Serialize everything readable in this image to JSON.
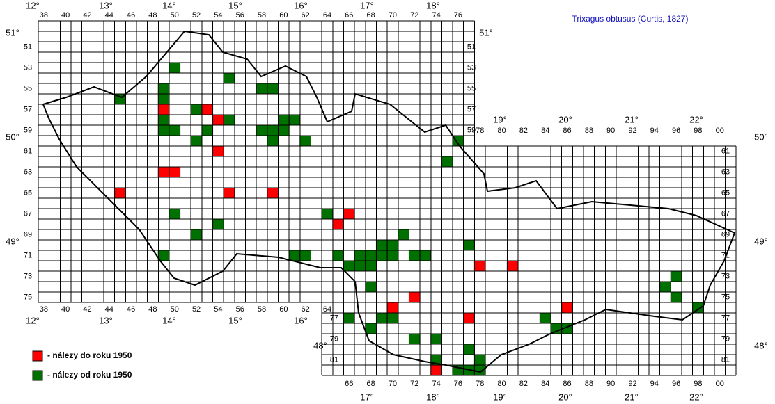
{
  "title": "Trixagus obtusus (Curtis, 1827)",
  "columns": {
    "west_top": [
      "38",
      "40",
      "42",
      "44",
      "46",
      "48",
      "50",
      "52",
      "54",
      "56",
      "58",
      "60",
      "62",
      "64",
      "66",
      "68",
      "70",
      "72",
      "74",
      "76"
    ],
    "east_top": [
      "78",
      "80",
      "82",
      "84",
      "86",
      "88",
      "90",
      "92",
      "94",
      "96",
      "98",
      "00"
    ],
    "west_bottom": [
      "38",
      "40",
      "42",
      "44",
      "46",
      "48",
      "50",
      "52",
      "54",
      "56",
      "58",
      "60",
      "62",
      "64"
    ],
    "east_bottom": [
      "66",
      "68",
      "70",
      "72",
      "74",
      "76",
      "78",
      "80",
      "82",
      "84",
      "86",
      "88",
      "90",
      "92",
      "94",
      "96",
      "98",
      "00"
    ]
  },
  "rows": {
    "west_left": [
      "51",
      "53",
      "55",
      "57",
      "59",
      "61",
      "63",
      "65",
      "67",
      "69",
      "71",
      "73",
      "75"
    ],
    "west_right": [
      "51",
      "53",
      "55",
      "57",
      "59"
    ],
    "east_right": [
      "61",
      "63",
      "65",
      "67",
      "69",
      "71",
      "73",
      "75",
      "77",
      "79",
      "81"
    ],
    "east_left": [
      "77",
      "79",
      "81"
    ]
  },
  "degrees": {
    "top": [
      "12°",
      "13°",
      "14°",
      "15°",
      "16°",
      "17°",
      "18°"
    ],
    "east_top": [
      "19°",
      "20°",
      "21°",
      "22°"
    ],
    "bottom_west": [
      "12°",
      "13°",
      "14°",
      "15°",
      "16°"
    ],
    "bottom_east": [
      "17°",
      "18°",
      "19°",
      "20°",
      "21°",
      "22°"
    ],
    "left": [
      "51°",
      "50°",
      "49°"
    ],
    "right": [
      "51°",
      "50°",
      "49°",
      "48°"
    ],
    "inner_left": [
      "48°"
    ]
  },
  "records": [
    {
      "label": "- nálezy do roku 1950",
      "color": "#ff0000",
      "cells": [
        [
          49,
          57
        ],
        [
          53,
          57
        ],
        [
          54,
          58
        ],
        [
          54,
          61
        ],
        [
          49,
          63
        ],
        [
          50,
          63
        ],
        [
          45,
          65
        ],
        [
          55,
          65
        ],
        [
          59,
          65
        ],
        [
          66,
          67
        ],
        [
          65,
          68
        ],
        [
          78,
          72
        ],
        [
          81,
          72
        ],
        [
          72,
          75
        ],
        [
          70,
          76
        ],
        [
          86,
          76
        ],
        [
          77,
          77
        ],
        [
          74,
          82
        ]
      ]
    },
    {
      "label": "- nálezy od roku 1950",
      "color": "#007000",
      "cells": [
        [
          50,
          53
        ],
        [
          55,
          54
        ],
        [
          49,
          55
        ],
        [
          58,
          55
        ],
        [
          59,
          55
        ],
        [
          45,
          56
        ],
        [
          49,
          56
        ],
        [
          52,
          57
        ],
        [
          49,
          58
        ],
        [
          55,
          58
        ],
        [
          60,
          58
        ],
        [
          61,
          58
        ],
        [
          49,
          59
        ],
        [
          50,
          59
        ],
        [
          53,
          59
        ],
        [
          58,
          59
        ],
        [
          59,
          59
        ],
        [
          60,
          59
        ],
        [
          52,
          60
        ],
        [
          59,
          60
        ],
        [
          62,
          60
        ],
        [
          76,
          60
        ],
        [
          75,
          62
        ],
        [
          50,
          67
        ],
        [
          64,
          67
        ],
        [
          54,
          68
        ],
        [
          52,
          69
        ],
        [
          71,
          69
        ],
        [
          69,
          70
        ],
        [
          70,
          70
        ],
        [
          77,
          70
        ],
        [
          49,
          71
        ],
        [
          61,
          71
        ],
        [
          62,
          71
        ],
        [
          65,
          71
        ],
        [
          67,
          71
        ],
        [
          68,
          71
        ],
        [
          69,
          71
        ],
        [
          70,
          71
        ],
        [
          72,
          71
        ],
        [
          73,
          71
        ],
        [
          66,
          72
        ],
        [
          67,
          72
        ],
        [
          68,
          72
        ],
        [
          96,
          73
        ],
        [
          68,
          74
        ],
        [
          95,
          74
        ],
        [
          96,
          75
        ],
        [
          98,
          76
        ],
        [
          66,
          77
        ],
        [
          69,
          77
        ],
        [
          70,
          77
        ],
        [
          84,
          77
        ],
        [
          68,
          78
        ],
        [
          85,
          78
        ],
        [
          86,
          78
        ],
        [
          72,
          79
        ],
        [
          74,
          79
        ],
        [
          77,
          80
        ],
        [
          74,
          81
        ],
        [
          78,
          81
        ],
        [
          76,
          82
        ],
        [
          77,
          82
        ],
        [
          78,
          82
        ]
      ]
    }
  ]
}
